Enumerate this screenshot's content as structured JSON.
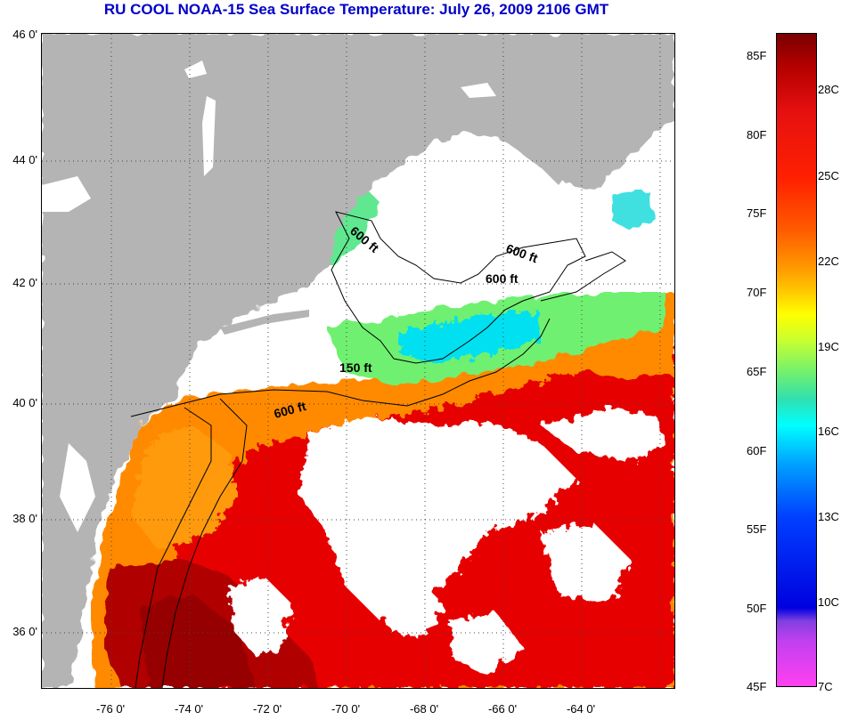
{
  "title": "RU COOL  NOAA-15  Sea Surface Temperature:  July 26, 2009 2106 GMT",
  "latitude_labels": [
    "46 0'",
    "44 0'",
    "42 0'",
    "40 0'",
    "38 0'",
    "36 0'"
  ],
  "longitude_labels": [
    "-76 0'",
    "-74 0'",
    "-72 0'",
    "-70 0'",
    "-68 0'",
    "-66 0'",
    "-64 0'"
  ],
  "depth_labels": [
    "600 ft",
    "600 ft",
    "600 ft",
    "150 ft",
    "600 ft"
  ],
  "colorbar": {
    "fahrenheit": [
      "85F",
      "80F",
      "75F",
      "70F",
      "65F",
      "60F",
      "55F",
      "50F",
      "45F"
    ],
    "celsius": [
      "28C",
      "25C",
      "22C",
      "19C",
      "16C",
      "13C",
      "10C",
      "7C"
    ]
  },
  "colors": {
    "land": "#b4b4b4",
    "cloud": "#ffffff",
    "title": "#0000c8",
    "warm": "#e60000",
    "hot": "#a00000",
    "orange": "#ff8a00",
    "green": "#70f070",
    "cyan": "#00e0f0"
  }
}
